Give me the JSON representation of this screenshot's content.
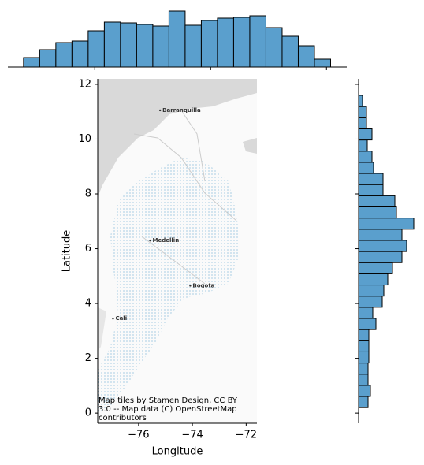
{
  "chart_data": [
    {
      "type": "map",
      "xlabel": "Longitude",
      "ylabel": "Latitude",
      "xlim": [
        -77.52,
        -71.6
      ],
      "ylim": [
        -0.37,
        12.2
      ],
      "xticks": [
        {
          "value": -76,
          "label": "−76"
        },
        {
          "value": -74,
          "label": "−74"
        },
        {
          "value": -72,
          "label": "−72"
        }
      ],
      "yticks": [
        0,
        2,
        4,
        6,
        8,
        10,
        12
      ],
      "attribution": [
        "Map tiles by Stamen Design, CC BY",
        "3.0 -- Map data (C) OpenStreetMap",
        "contributors"
      ],
      "places": [
        {
          "name": "Barranquilla",
          "lon": -75.2,
          "lat": 11.05
        },
        {
          "name": "Medellin",
          "lon": -75.57,
          "lat": 6.3
        },
        {
          "name": "Bogota",
          "lon": -74.08,
          "lat": 4.65
        },
        {
          "name": "Cali",
          "lon": -76.95,
          "lat": 3.45
        }
      ],
      "color": "#4c9ac9"
    },
    {
      "type": "histogram",
      "orientation": "vertical",
      "color": "#5a9fcd",
      "bins": [
        -77.23,
        -76.951,
        -76.672,
        -76.393,
        -76.114,
        -75.835,
        -75.556,
        -75.277,
        -74.998,
        -74.719,
        -74.44,
        -74.161,
        -73.882,
        -73.603,
        -73.324,
        -73.045,
        -72.766,
        -72.487,
        -72.208,
        -71.929
      ],
      "counts": [
        12,
        22,
        31,
        33,
        46,
        57,
        56,
        54,
        52,
        71,
        53,
        59,
        62,
        63,
        65,
        50,
        39,
        27,
        10
      ],
      "xlim": [
        -77.5,
        -71.65
      ],
      "xticks": [
        -76,
        -74,
        -72
      ],
      "ylim": [
        0,
        75
      ]
    },
    {
      "type": "histogram",
      "orientation": "horizontal",
      "color": "#5a9fcd",
      "bins": [
        0.2,
        0.607,
        1.014,
        1.421,
        1.828,
        2.235,
        2.642,
        3.049,
        3.456,
        3.863,
        4.27,
        4.677,
        5.084,
        5.491,
        5.898,
        6.305,
        6.712,
        7.119,
        7.526,
        7.933,
        8.34,
        8.747,
        9.154,
        9.561,
        9.968,
        10.375,
        10.782,
        11.189,
        11.596
      ],
      "counts": [
        12,
        15,
        12,
        12,
        13,
        13,
        13,
        22,
        18,
        30,
        32,
        37,
        43,
        55,
        61,
        55,
        70,
        48,
        46,
        31,
        31,
        19,
        17,
        11,
        17,
        10,
        10,
        5
      ],
      "ylim": [
        -0.37,
        12.2
      ],
      "yticks": [
        0,
        2,
        4,
        6,
        8,
        10,
        12
      ],
      "xlim": [
        0,
        80
      ]
    }
  ]
}
